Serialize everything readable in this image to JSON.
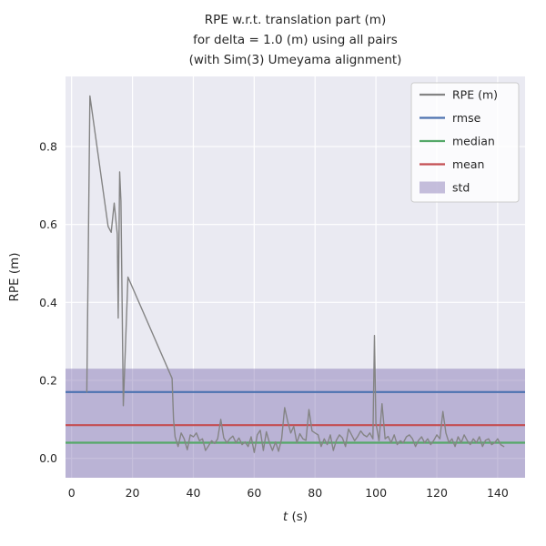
{
  "chart_data": {
    "type": "line",
    "title_lines": [
      "RPE w.r.t. translation part (m)",
      "for delta = 1.0 (m) using all pairs",
      "(with Sim(3) Umeyama alignment)"
    ],
    "xlabel": "t (s)",
    "ylabel": "RPE (m)",
    "xlim": [
      -2,
      149
    ],
    "ylim": [
      -0.05,
      0.98
    ],
    "xticks": [
      0,
      20,
      40,
      60,
      80,
      100,
      120,
      140
    ],
    "xtick_labels": [
      "0",
      "20",
      "40",
      "60",
      "80",
      "100",
      "120",
      "140"
    ],
    "yticks": [
      0.0,
      0.2,
      0.4,
      0.6,
      0.8
    ],
    "ytick_labels": [
      "0.0",
      "0.2",
      "0.4",
      "0.6",
      "0.8"
    ],
    "grid": true,
    "legend_position": "upper right",
    "legend": [
      {
        "label": "RPE (m)",
        "type": "line",
        "color_key": "rpe"
      },
      {
        "label": "rmse",
        "type": "line",
        "color_key": "rmse"
      },
      {
        "label": "median",
        "type": "line",
        "color_key": "median"
      },
      {
        "label": "mean",
        "type": "line",
        "color_key": "mean"
      },
      {
        "label": "std",
        "type": "patch",
        "color_key": "std"
      }
    ],
    "stats": {
      "rmse": 0.17,
      "median": 0.04,
      "mean": 0.085,
      "std": 0.145
    },
    "series": [
      {
        "name": "RPE (m)",
        "x": [
          5,
          6,
          12,
          13,
          14,
          15,
          15.3,
          15.8,
          16.2,
          17,
          18.5,
          33,
          33.5,
          34,
          35,
          36,
          37,
          38,
          39,
          40,
          41,
          42,
          43,
          44,
          45,
          46,
          47,
          48,
          49,
          50,
          51,
          52,
          53,
          54,
          55,
          56,
          57,
          58,
          59,
          60,
          61,
          62,
          63,
          64,
          65,
          66,
          67,
          68,
          69,
          70,
          71,
          72,
          73,
          74,
          75,
          76,
          77,
          78,
          79,
          80,
          81,
          82,
          83,
          84,
          85,
          86,
          87,
          88,
          89,
          90,
          91,
          92,
          93,
          94,
          95,
          96,
          97,
          98,
          99,
          99.5,
          100,
          101,
          102,
          103,
          104,
          105,
          106,
          107,
          108,
          109,
          110,
          111,
          112,
          113,
          114,
          115,
          116,
          117,
          118,
          119,
          120,
          121,
          122,
          123,
          124,
          125,
          126,
          127,
          128,
          129,
          130,
          131,
          132,
          133,
          134,
          135,
          136,
          137,
          138,
          139,
          140,
          141,
          142
        ],
        "y": [
          0.17,
          0.93,
          0.595,
          0.58,
          0.655,
          0.575,
          0.36,
          0.735,
          0.66,
          0.135,
          0.465,
          0.205,
          0.1,
          0.055,
          0.03,
          0.065,
          0.05,
          0.022,
          0.06,
          0.055,
          0.065,
          0.045,
          0.05,
          0.02,
          0.032,
          0.045,
          0.038,
          0.05,
          0.1,
          0.052,
          0.04,
          0.05,
          0.057,
          0.04,
          0.052,
          0.035,
          0.042,
          0.03,
          0.055,
          0.015,
          0.06,
          0.072,
          0.02,
          0.068,
          0.04,
          0.02,
          0.042,
          0.018,
          0.05,
          0.13,
          0.095,
          0.065,
          0.082,
          0.04,
          0.063,
          0.05,
          0.046,
          0.125,
          0.07,
          0.065,
          0.06,
          0.03,
          0.05,
          0.035,
          0.06,
          0.02,
          0.046,
          0.06,
          0.052,
          0.03,
          0.075,
          0.06,
          0.045,
          0.056,
          0.07,
          0.06,
          0.055,
          0.065,
          0.05,
          0.315,
          0.09,
          0.045,
          0.14,
          0.05,
          0.056,
          0.04,
          0.06,
          0.035,
          0.045,
          0.04,
          0.055,
          0.06,
          0.05,
          0.03,
          0.046,
          0.055,
          0.04,
          0.05,
          0.035,
          0.046,
          0.06,
          0.05,
          0.12,
          0.065,
          0.04,
          0.05,
          0.03,
          0.055,
          0.04,
          0.06,
          0.045,
          0.035,
          0.05,
          0.04,
          0.055,
          0.03,
          0.046,
          0.05,
          0.035,
          0.04,
          0.05,
          0.035,
          0.03
        ]
      }
    ]
  },
  "colors": {
    "rpe": "#848484",
    "rmse": "#4c72b0",
    "median": "#55a868",
    "mean": "#c44e52",
    "std": "#8172b2",
    "axes_background": "#eaeaf2",
    "grid": "#ffffff",
    "text": "#262626",
    "legend_background": "#ffffff",
    "legend_border": "#cccccc"
  }
}
